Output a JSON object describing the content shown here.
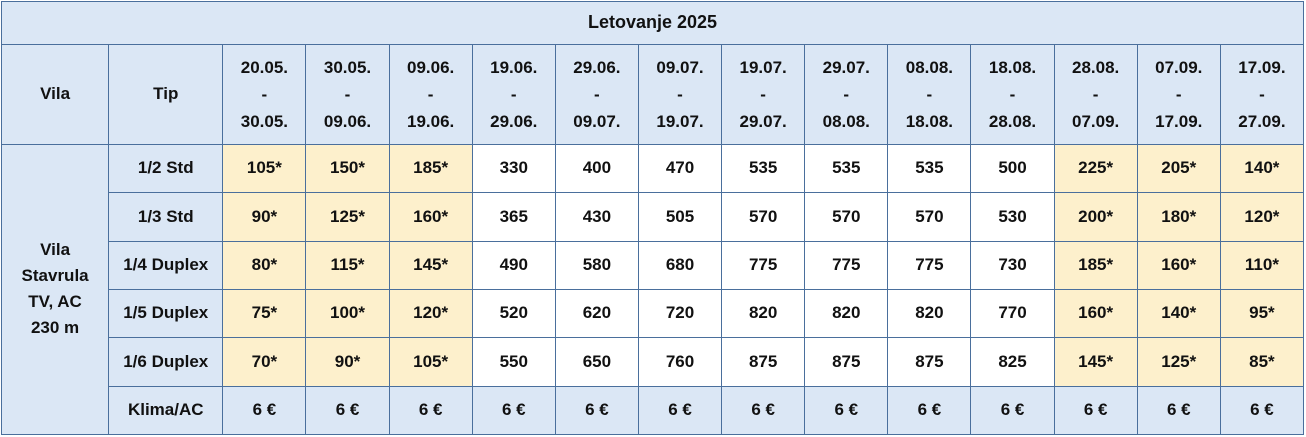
{
  "title": "Letovanje 2025",
  "headers": {
    "vila": "Vila",
    "tip": "Tip"
  },
  "periods": [
    {
      "from": "20.05.",
      "sep": "-",
      "to": "30.05."
    },
    {
      "from": "30.05.",
      "sep": "-",
      "to": "09.06."
    },
    {
      "from": "09.06.",
      "sep": "-",
      "to": "19.06."
    },
    {
      "from": "19.06.",
      "sep": "-",
      "to": "29.06."
    },
    {
      "from": "29.06.",
      "sep": "-",
      "to": "09.07."
    },
    {
      "from": "09.07.",
      "sep": "-",
      "to": "19.07."
    },
    {
      "from": "19.07.",
      "sep": "-",
      "to": "29.07."
    },
    {
      "from": "29.07.",
      "sep": "-",
      "to": "08.08."
    },
    {
      "from": "08.08.",
      "sep": "-",
      "to": "18.08."
    },
    {
      "from": "18.08.",
      "sep": "-",
      "to": "28.08."
    },
    {
      "from": "28.08.",
      "sep": "-",
      "to": "07.09."
    },
    {
      "from": "07.09.",
      "sep": "-",
      "to": "17.09."
    },
    {
      "from": "17.09.",
      "sep": "-",
      "to": "27.09."
    }
  ],
  "vila": {
    "lines": [
      "Vila",
      "Stavrula",
      "TV, AC",
      "230 m"
    ]
  },
  "rows": [
    {
      "tip": "1/2 Std",
      "prices": [
        "105*",
        "150*",
        "185*",
        "330",
        "400",
        "470",
        "535",
        "535",
        "535",
        "500",
        "225*",
        "205*",
        "140*"
      ]
    },
    {
      "tip": "1/3 Std",
      "prices": [
        "90*",
        "125*",
        "160*",
        "365",
        "430",
        "505",
        "570",
        "570",
        "570",
        "530",
        "200*",
        "180*",
        "120*"
      ]
    },
    {
      "tip": "1/4 Duplex",
      "prices": [
        "80*",
        "115*",
        "145*",
        "490",
        "580",
        "680",
        "775",
        "775",
        "775",
        "730",
        "185*",
        "160*",
        "110*"
      ]
    },
    {
      "tip": "1/5 Duplex",
      "prices": [
        "75*",
        "100*",
        "120*",
        "520",
        "620",
        "720",
        "820",
        "820",
        "820",
        "770",
        "160*",
        "140*",
        "95*"
      ]
    },
    {
      "tip": "1/6 Duplex",
      "prices": [
        "70*",
        "90*",
        "105*",
        "550",
        "650",
        "760",
        "875",
        "875",
        "875",
        "825",
        "145*",
        "125*",
        "85*"
      ]
    }
  ],
  "klima": {
    "label": "Klima/AC",
    "prices": [
      "6 €",
      "6 €",
      "6 €",
      "6 €",
      "6 €",
      "6 €",
      "6 €",
      "6 €",
      "6 €",
      "6 €",
      "6 €",
      "6 €",
      "6 €"
    ]
  }
}
